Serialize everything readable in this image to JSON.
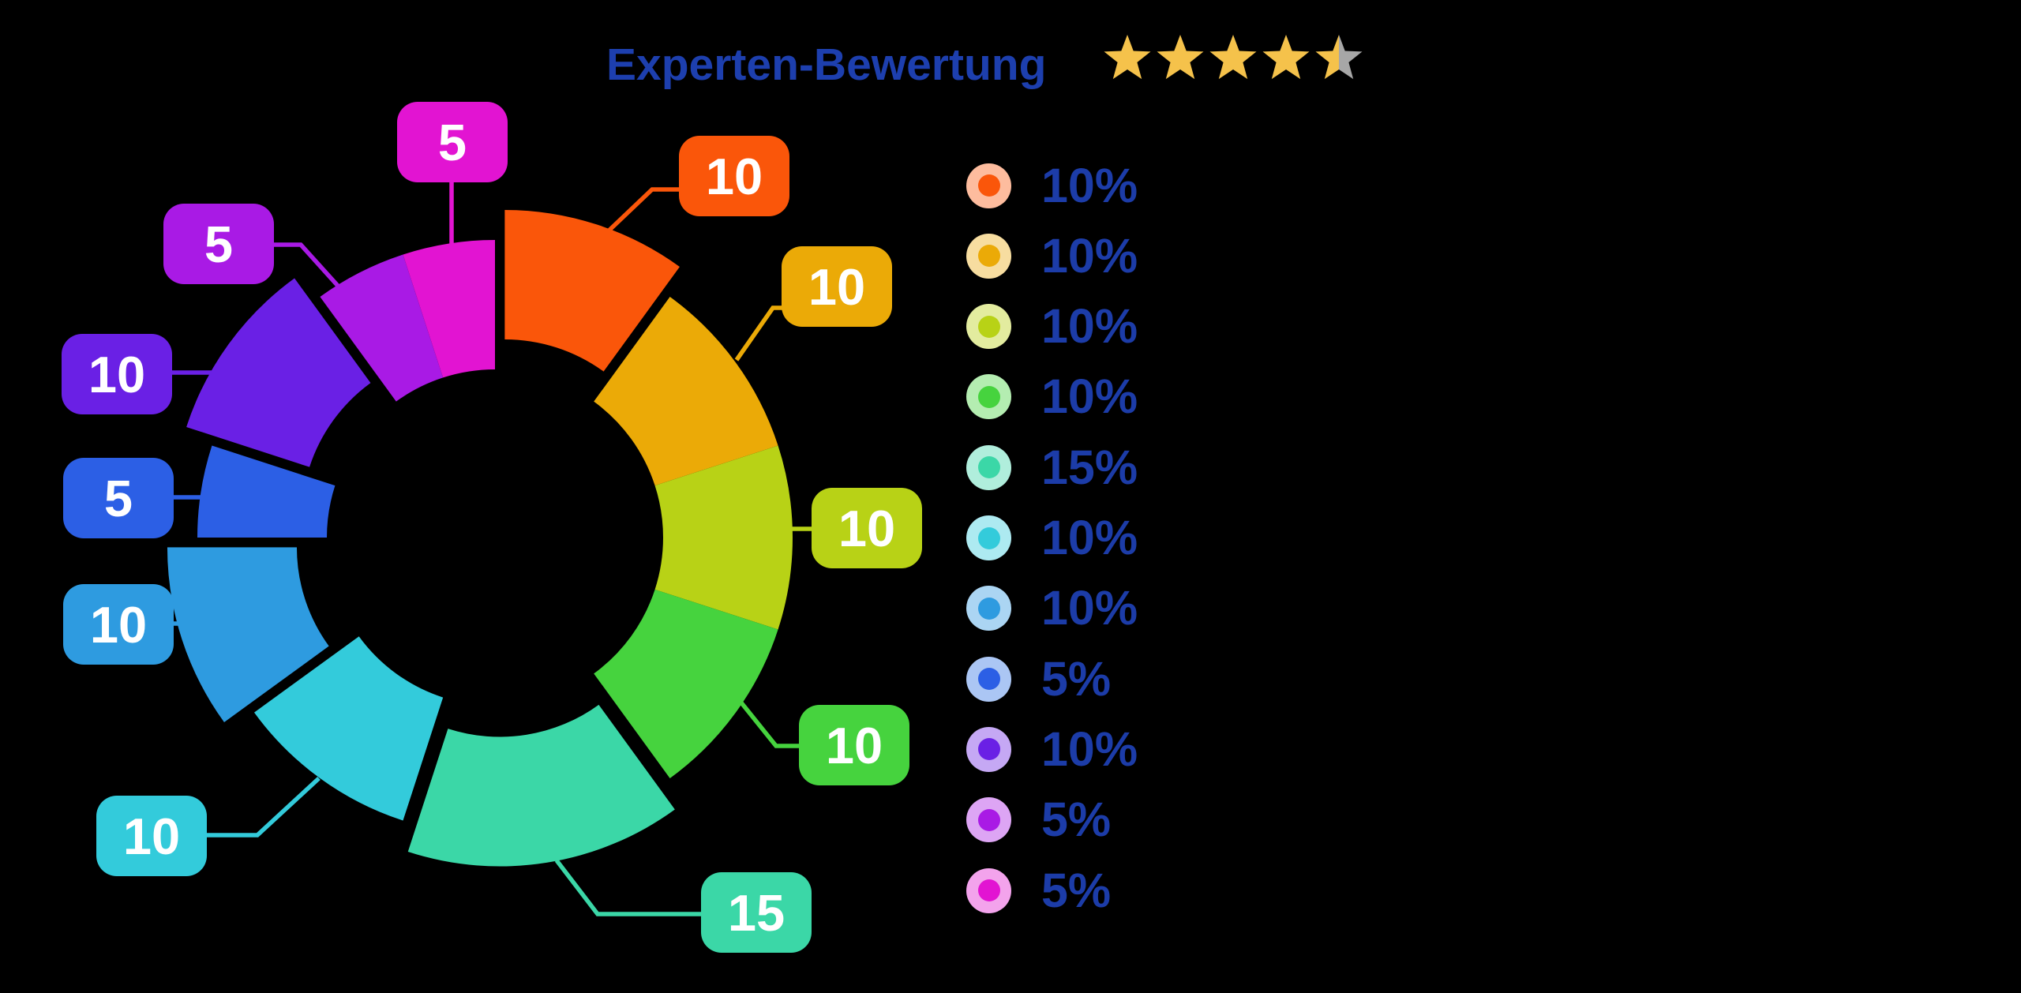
{
  "title": {
    "text": "Experten-Bewertung"
  },
  "rating": {
    "value": 4.5,
    "max": 5
  },
  "colors": {
    "background": "#000000",
    "title_text": "#1D3FAE",
    "legend_text": "#1C3CA8",
    "callout_text": "#FFFFFF",
    "star_filled": "#F5C24B",
    "star_empty": "#A7A7A7"
  },
  "chart_data": {
    "type": "pie",
    "subtype": "donut",
    "title": "Experten-Bewertung",
    "values_unit": "percent",
    "total": 100,
    "start_angle_deg": 0,
    "direction": "clockwise",
    "inner_radius_ratio": 0.565,
    "legend_position": "right",
    "segments": [
      {
        "label": "10",
        "value": 10,
        "legend_label": "10%",
        "color": "#FA560A",
        "tint": "#FDBC9E",
        "exploded": true
      },
      {
        "label": "10",
        "value": 10,
        "legend_label": "10%",
        "color": "#EBAA07",
        "tint": "#F7DDA0",
        "exploded": false
      },
      {
        "label": "10",
        "value": 10,
        "legend_label": "10%",
        "color": "#B8D216",
        "tint": "#E3EC9F",
        "exploded": false
      },
      {
        "label": "10",
        "value": 10,
        "legend_label": "10%",
        "color": "#46D33E",
        "tint": "#B4EDB1",
        "exploded": false
      },
      {
        "label": "15",
        "value": 15,
        "legend_label": "15%",
        "color": "#3BD7A7",
        "tint": "#B0EEDC",
        "exploded": true
      },
      {
        "label": "10",
        "value": 10,
        "legend_label": "10%",
        "color": "#33CBDB",
        "tint": "#ADEAF1",
        "exploded": false
      },
      {
        "label": "10",
        "value": 10,
        "legend_label": "10%",
        "color": "#2E9BE0",
        "tint": "#ABD5F3",
        "exploded": true
      },
      {
        "label": "5",
        "value": 5,
        "legend_label": "5%",
        "color": "#2C5FE5",
        "tint": "#ABC6F4",
        "exploded": false
      },
      {
        "label": "10",
        "value": 10,
        "legend_label": "10%",
        "color": "#6A20E5",
        "tint": "#C5A8F4",
        "exploded": true
      },
      {
        "label": "5",
        "value": 5,
        "legend_label": "5%",
        "color": "#A91AE5",
        "tint": "#DDA5F4",
        "exploded": false
      },
      {
        "label": "5",
        "value": 5,
        "legend_label": "5%",
        "color": "#E214D2",
        "tint": "#F3A3EC",
        "exploded": false
      }
    ]
  }
}
